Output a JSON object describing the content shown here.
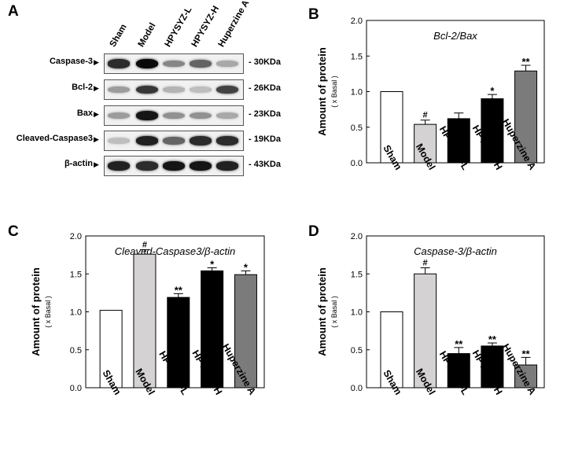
{
  "panels": {
    "a": "A",
    "b": "B",
    "c": "C",
    "d": "D"
  },
  "western_blot": {
    "lanes": [
      "Sham",
      "Model",
      "HPYSYZ-L",
      "HPYSYZ-H",
      "Huperzine A"
    ],
    "rows": [
      {
        "protein": "Caspase-3",
        "size": "30KDa",
        "intensity": [
          0.85,
          1.0,
          0.45,
          0.6,
          0.3
        ]
      },
      {
        "protein": "Bcl-2",
        "size": "26KDa",
        "intensity": [
          0.35,
          0.8,
          0.25,
          0.2,
          0.75
        ]
      },
      {
        "protein": "Bax",
        "size": "23KDa",
        "intensity": [
          0.35,
          0.95,
          0.4,
          0.4,
          0.3
        ]
      },
      {
        "protein": "Cleaved-Caspase3",
        "size": "19KDa",
        "intensity": [
          0.2,
          0.9,
          0.6,
          0.85,
          0.85
        ]
      },
      {
        "protein": "β-actin",
        "size": "43KDa",
        "intensity": [
          0.9,
          0.85,
          0.95,
          0.95,
          0.9
        ]
      }
    ]
  },
  "chart_data": [
    {
      "type": "bar",
      "panel": "B",
      "title": "Bcl-2/Bax",
      "ylabel": "Amount of protein",
      "ylabel_sub": "( x Basal )",
      "categories": [
        "Sham",
        "Model",
        "HPYSYZ-L",
        "HPYSYZ-H",
        "Huperzine A"
      ],
      "values": [
        1.0,
        0.54,
        0.62,
        0.9,
        1.29
      ],
      "errors": [
        0,
        0.06,
        0.08,
        0.06,
        0.08
      ],
      "annotations": [
        "",
        "#",
        "",
        "*",
        "**"
      ],
      "bar_colors": [
        "#ffffff",
        "#d4d2d3",
        "#000000",
        "#000000",
        "#7b7b7b"
      ],
      "ylim": [
        0,
        2.0
      ],
      "yticks": [
        "0.0",
        "0.5",
        "1.0",
        "1.5",
        "2.0"
      ],
      "grid": false
    },
    {
      "type": "bar",
      "panel": "C",
      "title": "Cleaved-Caspase3/β-actin",
      "ylabel": "Amount of protein",
      "ylabel_sub": "( x Basal )",
      "categories": [
        "Sham",
        "Model",
        "HPYSYZ-L",
        "HPYSYZ-H",
        "Huperzine A"
      ],
      "values": [
        1.02,
        1.76,
        1.19,
        1.54,
        1.49
      ],
      "errors": [
        0,
        0.06,
        0.05,
        0.04,
        0.05
      ],
      "annotations": [
        "",
        "#",
        "**",
        "*",
        "*"
      ],
      "bar_colors": [
        "#ffffff",
        "#d4d2d3",
        "#000000",
        "#000000",
        "#7b7b7b"
      ],
      "ylim": [
        0,
        2.0
      ],
      "yticks": [
        "0.0",
        "0.5",
        "1.0",
        "1.5",
        "2.0"
      ],
      "grid": false
    },
    {
      "type": "bar",
      "panel": "D",
      "title": "Caspase-3/β-actin",
      "ylabel": "Amount of protein",
      "ylabel_sub": "( x Basal )",
      "categories": [
        "Sham",
        "Model",
        "HPYSYZ-L",
        "HPYSYZ-H",
        "Huperzine A"
      ],
      "values": [
        1.0,
        1.5,
        0.45,
        0.55,
        0.3
      ],
      "errors": [
        0,
        0.08,
        0.08,
        0.04,
        0.1
      ],
      "annotations": [
        "",
        "#",
        "**",
        "**",
        "**"
      ],
      "bar_colors": [
        "#ffffff",
        "#d4d2d3",
        "#000000",
        "#000000",
        "#7b7b7b"
      ],
      "ylim": [
        0,
        2.0
      ],
      "yticks": [
        "0.0",
        "0.5",
        "1.0",
        "1.5",
        "2.0"
      ],
      "grid": false
    }
  ]
}
